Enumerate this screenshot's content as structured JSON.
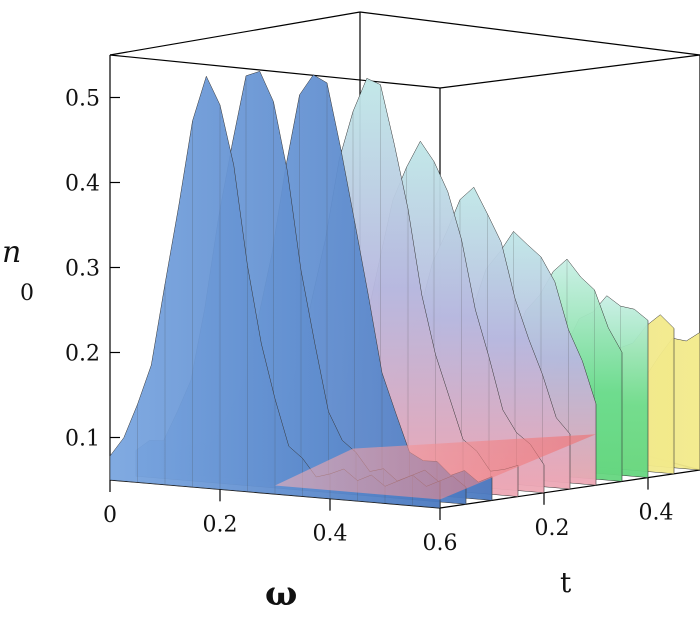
{
  "chart_data": {
    "type": "surface",
    "title": "",
    "xlabel": "ω",
    "ylabel": "t",
    "zlabel": "n",
    "zlabel_subscript": "0",
    "xlim": [
      0,
      0.6
    ],
    "ylim": [
      0,
      0.5
    ],
    "zlim": [
      0.05,
      0.55
    ],
    "x_ticks": [
      "0",
      "0.2",
      "0.4",
      "0.6"
    ],
    "y_ticks": [
      "0.2",
      "0.4"
    ],
    "z_ticks": [
      "0.1",
      "0.2",
      "0.3",
      "0.4",
      "0.5"
    ],
    "grid": false,
    "legend": "none",
    "ridges": [
      {
        "t": 0.0,
        "omega_peak": 0.18,
        "value": 0.52
      },
      {
        "t": 0.05,
        "omega_peak": 0.22,
        "value": 0.54
      },
      {
        "t": 0.1,
        "omega_peak": 0.28,
        "value": 0.53
      },
      {
        "t": 0.15,
        "omega_peak": 0.33,
        "value": 0.52
      },
      {
        "t": 0.2,
        "omega_peak": 0.38,
        "value": 0.44
      },
      {
        "t": 0.25,
        "omega_peak": 0.42,
        "value": 0.38
      },
      {
        "t": 0.3,
        "omega_peak": 0.46,
        "value": 0.33
      },
      {
        "t": 0.35,
        "omega_peak": 0.5,
        "value": 0.29
      },
      {
        "t": 0.4,
        "omega_peak": 0.54,
        "value": 0.25
      },
      {
        "t": 0.45,
        "omega_peak": 0.58,
        "value": 0.22
      },
      {
        "t": 0.5,
        "omega_peak": 0.6,
        "value": 0.2
      }
    ],
    "colors": {
      "low": "#f06c6c",
      "mid_green": "#6fdc6f",
      "mid_yellow": "#eef08a",
      "blue": "#5b8fd6"
    }
  }
}
